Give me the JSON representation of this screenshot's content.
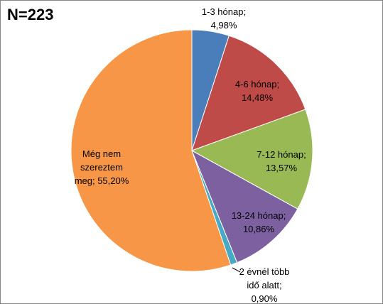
{
  "chart_data": {
    "type": "pie",
    "title": "N=223",
    "values": [
      4.98,
      14.48,
      13.57,
      10.86,
      0.9,
      55.2
    ],
    "value_labels": [
      "1-3 hónap; 4,98%",
      "4-6 hónap; 14,48%",
      "7-12 hónap; 13,57%",
      "13-24 hónap; 10,86%",
      "2 évnél több idő alatt; 0,90%",
      "Még nem szereztem meg; 55,20%"
    ],
    "colors": [
      "#4a7ebb",
      "#be4b48",
      "#98b954",
      "#7d60a0",
      "#46aac5",
      "#f79646"
    ]
  }
}
